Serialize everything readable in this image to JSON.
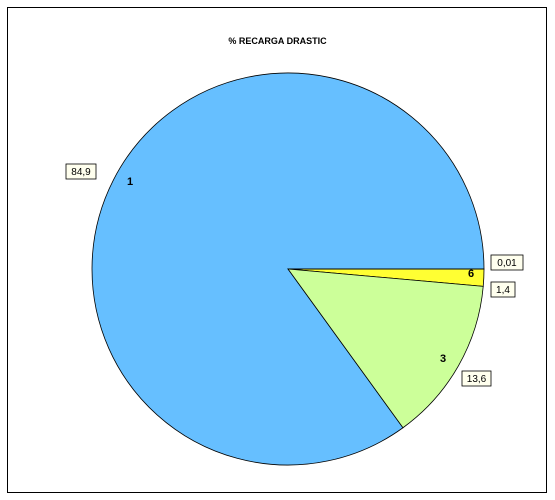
{
  "chart_data": {
    "type": "pie",
    "title": "% RECARGA DRASTIC",
    "slices": [
      {
        "label": "1",
        "value": 84.9,
        "value_text": "84,9",
        "color": "#66bfff"
      },
      {
        "label": "6",
        "value": 0.01,
        "value_text": "0,01",
        "color": "#ffff33"
      },
      {
        "label": "",
        "value": 1.4,
        "value_text": "1,4",
        "color": "#ffff33"
      },
      {
        "label": "3",
        "value": 13.6,
        "value_text": "13,6",
        "color": "#ccff99"
      }
    ],
    "start_direction": "right",
    "order": "counterclockwise",
    "outline_color": "#000000",
    "background": "#ffffff"
  }
}
